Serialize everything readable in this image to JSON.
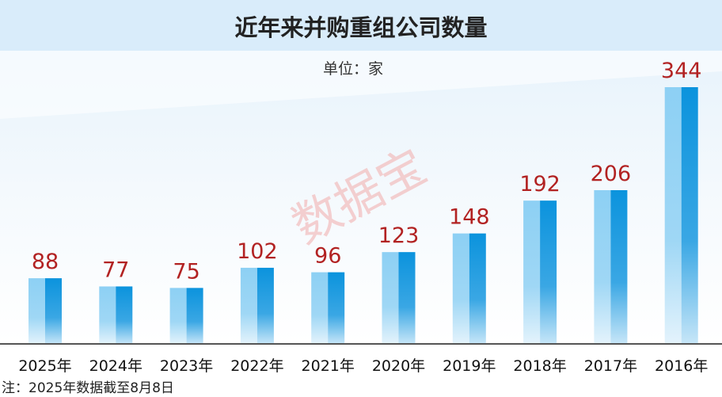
{
  "unit_label": "单位：家",
  "watermark": "数据宝",
  "footnote": "注：2025年数据截至8月8日",
  "colors": {
    "bar_light": "#8dd0f4",
    "bar_dark": "#0b93dd",
    "value_label": "#b22222",
    "title_band": "#d9ecfa",
    "watermark": "#f2b8b8"
  },
  "chart_data": {
    "type": "bar",
    "title": "近年来并购重组公司数量",
    "categories": [
      "2025年",
      "2024年",
      "2023年",
      "2022年",
      "2021年",
      "2020年",
      "2019年",
      "2018年",
      "2017年",
      "2016年"
    ],
    "values": [
      88,
      77,
      75,
      102,
      96,
      123,
      148,
      192,
      206,
      344
    ],
    "ylim": [
      0,
      344
    ],
    "grid": false,
    "legend": "none"
  }
}
